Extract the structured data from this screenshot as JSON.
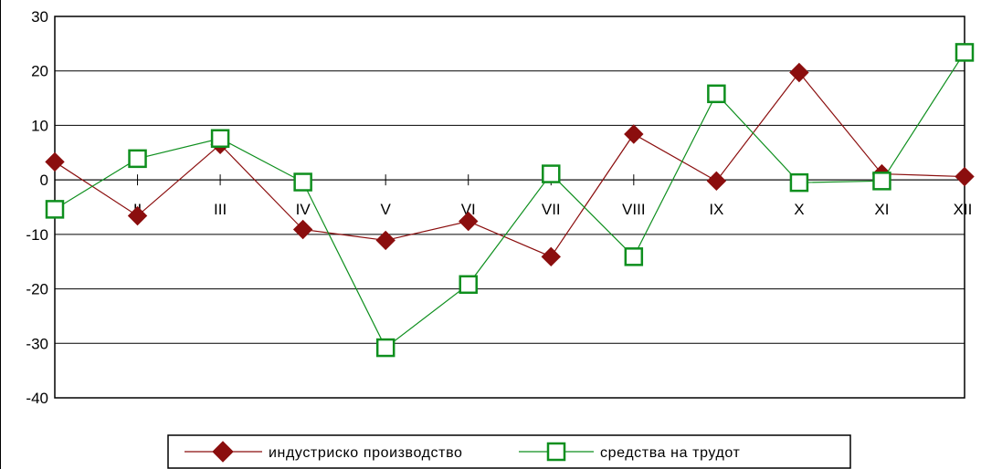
{
  "chart_data": {
    "type": "line",
    "categories": [
      "I",
      "II",
      "III",
      "IV",
      "V",
      "VI",
      "VII",
      "VIII",
      "IX",
      "X",
      "XI",
      "XII"
    ],
    "ylim": [
      -40,
      30
    ],
    "yticks": [
      30,
      20,
      10,
      0,
      -10,
      -20,
      -30,
      -40
    ],
    "ytick_labels": [
      "30",
      "20",
      "10",
      "0",
      "-10",
      "-20",
      "-30",
      "-40"
    ],
    "grid": true,
    "legend_position": "bottom",
    "series": [
      {
        "name": "индустриско производство",
        "color": "#8b0e0e",
        "marker": "diamond",
        "values": [
          3.3,
          -6.6,
          6.5,
          -9.1,
          -11.1,
          -7.6,
          -14.1,
          8.4,
          -0.2,
          19.7,
          1.1,
          0.6
        ]
      },
      {
        "name": "средства на трудот",
        "color": "#0e8f1e",
        "marker": "square",
        "values": [
          -5.4,
          3.9,
          7.6,
          -0.4,
          -30.8,
          -19.2,
          1.1,
          -14.1,
          15.8,
          -0.5,
          -0.2,
          23.4
        ]
      }
    ]
  }
}
